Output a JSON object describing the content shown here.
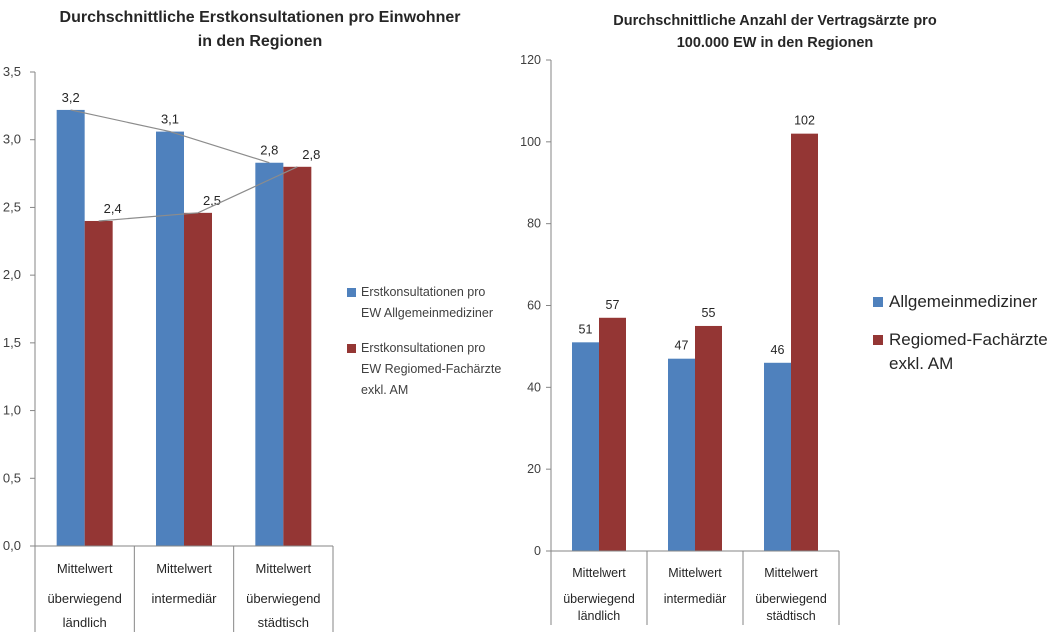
{
  "chart_data": [
    {
      "type": "bar",
      "title_lines": [
        "Durchschnittliche Erstkonsultationen pro Einwohner",
        "in den Regionen"
      ],
      "categories": [
        [
          "Mittelwert",
          "überwiegend",
          "ländlich"
        ],
        [
          "Mittelwert",
          "intermediär"
        ],
        [
          "Mittelwert",
          "überwiegend",
          "städtisch"
        ]
      ],
      "series": [
        {
          "name_lines": [
            "Erstkonsultationen pro",
            "EW Allgemeinmediziner"
          ],
          "values": [
            3.22,
            3.06,
            2.83
          ],
          "labels": [
            "3,2",
            "3,1",
            "2,8"
          ],
          "color": "#4F81BD"
        },
        {
          "name_lines": [
            "Erstkonsultationen pro",
            "EW Regiomed-Fachärzte",
            "exkl. AM"
          ],
          "values": [
            2.4,
            2.46,
            2.8
          ],
          "labels": [
            "2,4",
            "2,5",
            "2,8"
          ],
          "color": "#943634"
        }
      ],
      "ylim": [
        0,
        3.5
      ],
      "yticks": [
        0,
        0.5,
        1.0,
        1.5,
        2.0,
        2.5,
        3.0,
        3.5
      ],
      "ytick_labels": [
        "0,0",
        "0,5",
        "1,0",
        "1,5",
        "2,0",
        "2,5",
        "3,0",
        "3,5"
      ],
      "trend_lines": true,
      "grid": false,
      "legend_position": "right"
    },
    {
      "type": "bar",
      "title_lines": [
        "Durchschnittliche Anzahl der Vertragsärzte pro",
        "100.000 EW in den Regionen"
      ],
      "categories": [
        [
          "Mittelwert",
          "überwiegend",
          "ländlich"
        ],
        [
          "Mittelwert",
          "intermediär"
        ],
        [
          "Mittelwert",
          "überwiegend",
          "städtisch"
        ]
      ],
      "series": [
        {
          "name_lines": [
            "Allgemeinmediziner"
          ],
          "values": [
            51,
            47,
            46
          ],
          "labels": [
            "51",
            "47",
            "46"
          ],
          "color": "#4F81BD"
        },
        {
          "name_lines": [
            "Regiomed-Fachärzte",
            "exkl. AM"
          ],
          "values": [
            57,
            55,
            102
          ],
          "labels": [
            "57",
            "55",
            "102"
          ],
          "color": "#943634"
        }
      ],
      "ylim": [
        0,
        120
      ],
      "yticks": [
        0,
        20,
        40,
        60,
        80,
        100,
        120
      ],
      "ytick_labels": [
        "0",
        "20",
        "40",
        "60",
        "80",
        "100",
        "120"
      ],
      "trend_lines": false,
      "grid": false,
      "legend_position": "right"
    }
  ]
}
